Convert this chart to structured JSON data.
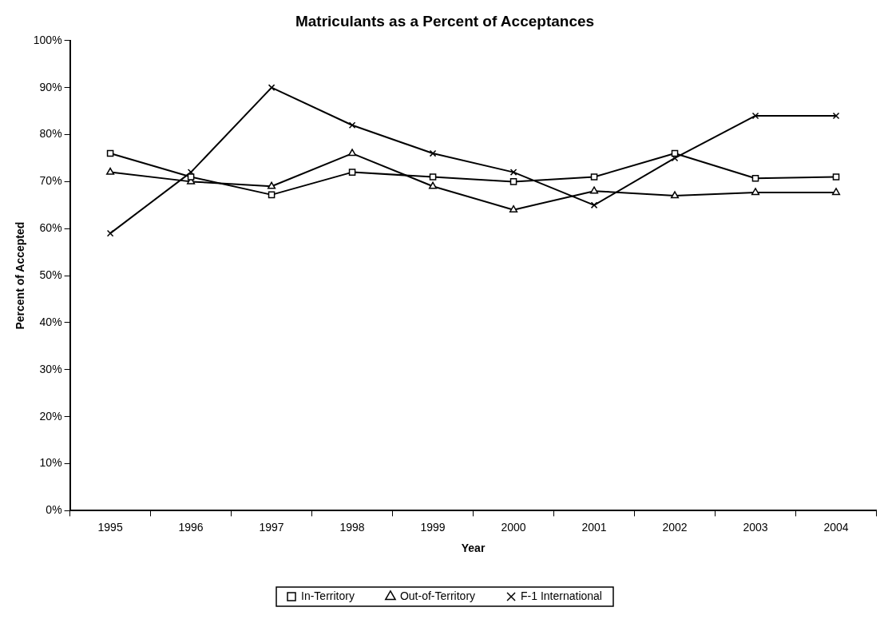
{
  "chart_data": {
    "type": "line",
    "title": "Matriculants as a Percent of Acceptances",
    "xlabel": "Year",
    "ylabel": "Percent of Accepted",
    "categories": [
      "1995",
      "1996",
      "1997",
      "1998",
      "1999",
      "2000",
      "2001",
      "2002",
      "2003",
      "2004"
    ],
    "series": [
      {
        "name": "In-Territory",
        "color": "#000000",
        "marker": "square",
        "values": [
          76,
          71,
          67.2,
          72,
          71,
          70,
          71,
          76,
          70.7,
          71
        ]
      },
      {
        "name": "Out-of-Territory",
        "color": "#000000",
        "marker": "triangle",
        "values": [
          72,
          70,
          69,
          76,
          69,
          64,
          68,
          67,
          67.7,
          67.7
        ]
      },
      {
        "name": "F-1 International",
        "color": "#000000",
        "marker": "cross",
        "values": [
          59,
          72,
          90,
          82,
          76,
          72,
          65,
          75,
          84,
          84
        ]
      }
    ],
    "ylim": [
      0,
      100
    ],
    "yticks": [
      {
        "value": 0,
        "label": "0%"
      },
      {
        "value": 10,
        "label": "10%"
      },
      {
        "value": 20,
        "label": "20%"
      },
      {
        "value": 30,
        "label": "30%"
      },
      {
        "value": 40,
        "label": "40%"
      },
      {
        "value": 50,
        "label": "50%"
      },
      {
        "value": 60,
        "label": "60%"
      },
      {
        "value": 70,
        "label": "70%"
      },
      {
        "value": 80,
        "label": "80%"
      },
      {
        "value": 90,
        "label": "90%"
      },
      {
        "value": 100,
        "label": "100%"
      }
    ],
    "grid": false,
    "legend": "bottom",
    "line_style": "solid"
  }
}
